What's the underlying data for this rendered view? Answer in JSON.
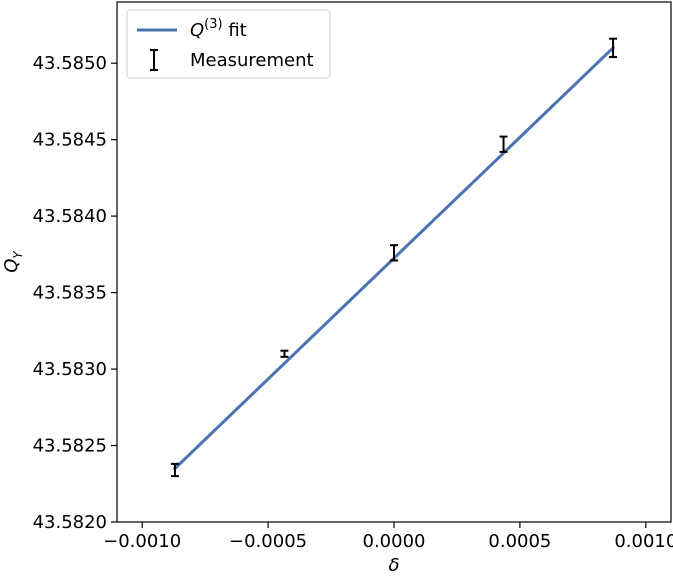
{
  "chart_data": {
    "type": "line",
    "title": "",
    "xlabel": "δ",
    "ylabel": "Q_Y",
    "xlim": [
      -0.0011,
      0.0011
    ],
    "ylim": [
      43.582,
      43.5854
    ],
    "x_ticks": [
      -0.001,
      -0.0005,
      0.0,
      0.0005,
      0.001
    ],
    "x_tick_labels": [
      "−0.0010",
      "−0.0005",
      "0.0000",
      "0.0005",
      "0.0010"
    ],
    "y_ticks": [
      43.582,
      43.5825,
      43.583,
      43.5835,
      43.584,
      43.5845,
      43.585
    ],
    "y_tick_labels": [
      "43.5820",
      "43.5825",
      "43.5830",
      "43.5835",
      "43.5840",
      "43.5845",
      "43.5850"
    ],
    "grid": false,
    "legend_position": "top-left",
    "series": [
      {
        "name": "Q(3) fit",
        "kind": "line",
        "color": "#4c72b0",
        "x": [
          -0.00087,
          0.00087
        ],
        "y": [
          43.58235,
          43.5851
        ]
      },
      {
        "name": "Measurement",
        "kind": "errorbar",
        "color": "#000000",
        "x": [
          -0.00087,
          -0.000435,
          0.0,
          0.000435,
          0.00087
        ],
        "y": [
          43.58234,
          43.5831,
          43.58376,
          43.58447,
          43.5851
        ],
        "yerr": [
          4e-05,
          2e-05,
          5e-05,
          5e-05,
          6e-05
        ]
      }
    ],
    "legend": {
      "fit_label_base": "Q",
      "fit_label_sup": "(3)",
      "fit_label_suffix": " fit",
      "measurement_label": "Measurement"
    },
    "axis_labels": {
      "x": "δ",
      "y_base": "Q",
      "y_sub": "Y"
    }
  }
}
